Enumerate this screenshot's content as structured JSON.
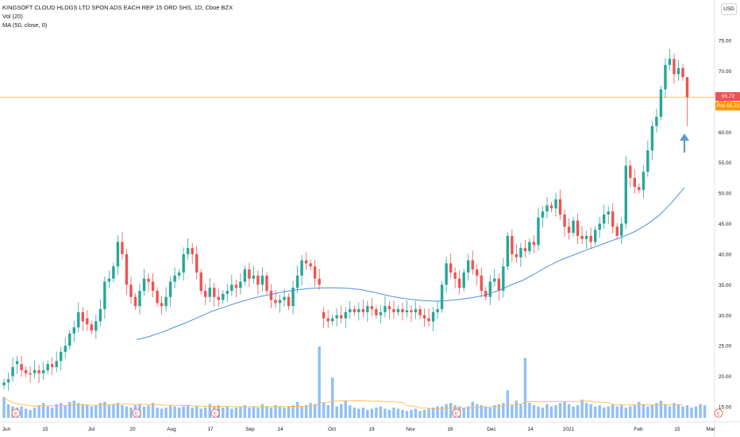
{
  "header": {
    "symbol_line": "KINGSOFT CLOUD HLDGS LTD SPON ADS EACH REP 15 ORD SHS, 1D, Cboe BZX",
    "vol_label": "Vol (20)",
    "ma_label": "MA (50, close, 0)",
    "currency_button": "USD"
  },
  "price_tags": {
    "last": "65.72",
    "pre_label": "Pre",
    "pre_value": "65.72"
  },
  "colors": {
    "up": "#26a69a",
    "down": "#ef5350",
    "volume": "#90bff9",
    "ma": "#4a90d9",
    "vol_ma": "#ffb74d",
    "price_line": "#ff9800",
    "arrow": "#5b9bd5",
    "earnings": "#ef5350"
  },
  "chart_data": {
    "type": "candlestick",
    "interval": "1D",
    "yaxis_ticks": [
      "75.00",
      "70.00",
      "65.00",
      "60.00",
      "55.00",
      "50.00",
      "45.00",
      "40.00",
      "35.00",
      "30.00",
      "25.00",
      "20.00",
      "15.00"
    ],
    "xaxis_ticks": [
      "Jun",
      "15",
      "Jul",
      "20",
      "Aug",
      "17",
      "Sep",
      "14",
      "Oct",
      "19",
      "Nov",
      "16",
      "Dec",
      "14",
      "2021",
      "Feb",
      "15",
      "Mar"
    ],
    "last_price": 65.72,
    "series_close": [
      19.0,
      19.5,
      21.5,
      22.5,
      21.0,
      20.5,
      20.3,
      21.0,
      20.5,
      21.0,
      22.0,
      21.5,
      22.5,
      24.0,
      25.0,
      27.0,
      28.0,
      30.5,
      29.0,
      28.5,
      27.5,
      29.0,
      31.0,
      35.5,
      36.0,
      38.0,
      42.0,
      40.0,
      35.0,
      33.0,
      31.5,
      34.0,
      36.0,
      35.5,
      34.0,
      32.0,
      31.5,
      33.0,
      35.5,
      36.5,
      37.0,
      40.0,
      41.0,
      40.0,
      37.0,
      34.0,
      33.0,
      34.5,
      33.0,
      32.5,
      33.5,
      34.0,
      35.0,
      34.5,
      35.5,
      37.5,
      36.0,
      36.5,
      35.0,
      36.5,
      34.0,
      32.5,
      32.0,
      32.5,
      33.0,
      31.5,
      34.5,
      36.5,
      39.0,
      38.5,
      38.0,
      36.0,
      35.0,
      29.5,
      29.0,
      29.5,
      30.0,
      29.5,
      30.5,
      31.0,
      30.5,
      31.0,
      30.5,
      31.5,
      31.0,
      30.0,
      30.5,
      31.5,
      31.0,
      30.5,
      31.0,
      30.5,
      30.8,
      30.5,
      31.0,
      30.0,
      29.5,
      29.0,
      30.5,
      31.0,
      35.0,
      38.5,
      37.0,
      36.0,
      34.5,
      37.0,
      39.0,
      37.5,
      36.5,
      34.0,
      33.0,
      35.5,
      36.0,
      34.0,
      38.0,
      43.0,
      40.0,
      39.5,
      41.0,
      40.5,
      42.0,
      41.5,
      46.0,
      47.0,
      48.0,
      47.5,
      49.0,
      46.5,
      44.5,
      43.5,
      45.5,
      43.0,
      42.5,
      43.0,
      42.0,
      44.0,
      45.0,
      46.5,
      47.0,
      44.5,
      43.0,
      45.0,
      54.5,
      52.5,
      51.0,
      50.5,
      53.5,
      57.0,
      61.0,
      62.5,
      67.0,
      71.0,
      72.0,
      69.5,
      70.5,
      69.0
    ],
    "series_open": [
      18.5,
      19.0,
      20.0,
      22.0,
      22.0,
      21.0,
      20.5,
      20.5,
      21.0,
      20.5,
      21.0,
      22.0,
      21.5,
      22.5,
      24.0,
      25.0,
      27.0,
      28.0,
      30.5,
      29.5,
      28.5,
      27.5,
      29.0,
      31.0,
      35.5,
      36.0,
      38.0,
      42.0,
      40.0,
      35.0,
      33.0,
      31.5,
      34.0,
      36.0,
      35.5,
      34.0,
      32.0,
      31.5,
      33.0,
      35.5,
      36.5,
      37.0,
      40.0,
      41.0,
      40.0,
      37.0,
      34.0,
      33.0,
      34.5,
      33.0,
      32.5,
      33.5,
      34.0,
      35.0,
      34.5,
      35.5,
      37.5,
      36.0,
      36.5,
      35.0,
      36.5,
      34.0,
      32.5,
      32.0,
      32.5,
      33.0,
      31.5,
      34.5,
      36.5,
      39.0,
      38.5,
      38.0,
      36.0,
      30.5,
      29.5,
      29.0,
      29.5,
      30.0,
      29.5,
      30.5,
      31.0,
      30.5,
      31.0,
      30.5,
      31.5,
      31.0,
      30.0,
      30.5,
      31.5,
      31.0,
      30.5,
      31.0,
      30.5,
      30.8,
      30.5,
      31.0,
      30.0,
      29.5,
      29.0,
      30.5,
      31.0,
      35.0,
      38.5,
      37.0,
      36.0,
      34.5,
      37.0,
      39.0,
      37.5,
      36.5,
      34.0,
      33.0,
      35.5,
      36.0,
      34.0,
      38.0,
      43.0,
      40.0,
      39.5,
      41.0,
      40.5,
      42.0,
      41.5,
      46.0,
      47.0,
      48.0,
      47.5,
      49.0,
      46.5,
      44.5,
      43.5,
      45.5,
      43.0,
      42.5,
      43.0,
      42.0,
      44.0,
      45.0,
      46.5,
      47.0,
      44.5,
      43.0,
      45.0,
      54.5,
      52.5,
      51.0,
      50.5,
      53.5,
      57.0,
      61.0,
      62.5,
      67.0,
      71.0,
      72.0,
      69.5,
      70.5
    ],
    "premarket_close": 65.72,
    "premarket_low": 61.0,
    "volume_millions": [
      1.8,
      1.2,
      1.0,
      0.9,
      1.0,
      0.8,
      0.7,
      0.9,
      1.1,
      1.3,
      1.0,
      0.9,
      1.2,
      1.3,
      1.1,
      1.4,
      1.5,
      1.3,
      1.2,
      1.1,
      1.0,
      1.1,
      1.3,
      1.4,
      1.1,
      1.2,
      1.3,
      1.1,
      1.0,
      0.9,
      1.1,
      1.2,
      1.0,
      1.1,
      1.3,
      0.9,
      0.8,
      0.9,
      1.1,
      1.0,
      0.9,
      1.0,
      1.1,
      0.9,
      1.0,
      0.8,
      0.9,
      1.2,
      1.0,
      1.1,
      0.9,
      1.0,
      0.8,
      0.9,
      1.0,
      1.1,
      0.9,
      1.0,
      0.9,
      1.2,
      1.0,
      0.9,
      1.1,
      1.0,
      0.9,
      1.0,
      1.1,
      1.4,
      1.0,
      1.1,
      1.3,
      1.2,
      6.2,
      1.3,
      1.1,
      3.5,
      1.0,
      1.2,
      1.5,
      1.1,
      0.9,
      0.8,
      0.9,
      0.7,
      0.8,
      0.9,
      1.0,
      0.8,
      0.7,
      0.9,
      0.8,
      0.7,
      0.6,
      0.7,
      0.8,
      0.6,
      0.7,
      0.8,
      0.9,
      1.0,
      1.0,
      1.2,
      1.3,
      1.1,
      1.0,
      0.9,
      1.0,
      1.4,
      1.2,
      1.1,
      1.0,
      0.9,
      1.1,
      1.2,
      1.3,
      2.4,
      1.1,
      1.5,
      1.2,
      5.2,
      1.3,
      1.1,
      1.0,
      0.9,
      1.2,
      1.0,
      1.1,
      1.3,
      1.4,
      1.2,
      1.0,
      1.1,
      1.6,
      1.3,
      1.2,
      1.0,
      1.1,
      0.9,
      1.0,
      1.2,
      1.0,
      1.1,
      0.9,
      1.0,
      1.1,
      1.4,
      1.2,
      1.0,
      1.1,
      1.3,
      1.5,
      1.2,
      1.0,
      1.3,
      1.2,
      1.0,
      1.1,
      0.9,
      1.0,
      1.2,
      1.1
    ],
    "ma50": [
      26.0,
      26.5,
      27.2,
      28.0,
      28.8,
      29.7,
      30.6,
      31.3,
      32.0,
      32.6,
      33.1,
      33.5,
      33.9,
      34.2,
      34.4,
      34.5,
      34.5,
      34.4,
      34.2,
      33.8,
      33.3,
      32.9,
      32.6,
      32.4,
      32.3,
      32.4,
      32.6,
      32.9,
      33.3,
      34.0,
      34.9,
      35.7,
      36.8,
      38.0,
      39.0,
      39.8,
      40.6,
      41.3,
      42.1,
      42.8,
      43.7,
      44.9,
      46.4,
      48.5,
      50.9
    ],
    "annotations": [
      "E",
      "E",
      "E",
      "E",
      "E"
    ]
  }
}
